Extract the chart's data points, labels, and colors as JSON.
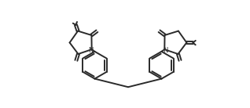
{
  "bg_color": "#ffffff",
  "line_color": "#2a2a2a",
  "lw": 1.4,
  "fig_w": 3.18,
  "fig_h": 1.38,
  "dpi": 100,
  "xlim": [
    -1.0,
    11.0
  ],
  "ylim": [
    -0.5,
    5.0
  ]
}
